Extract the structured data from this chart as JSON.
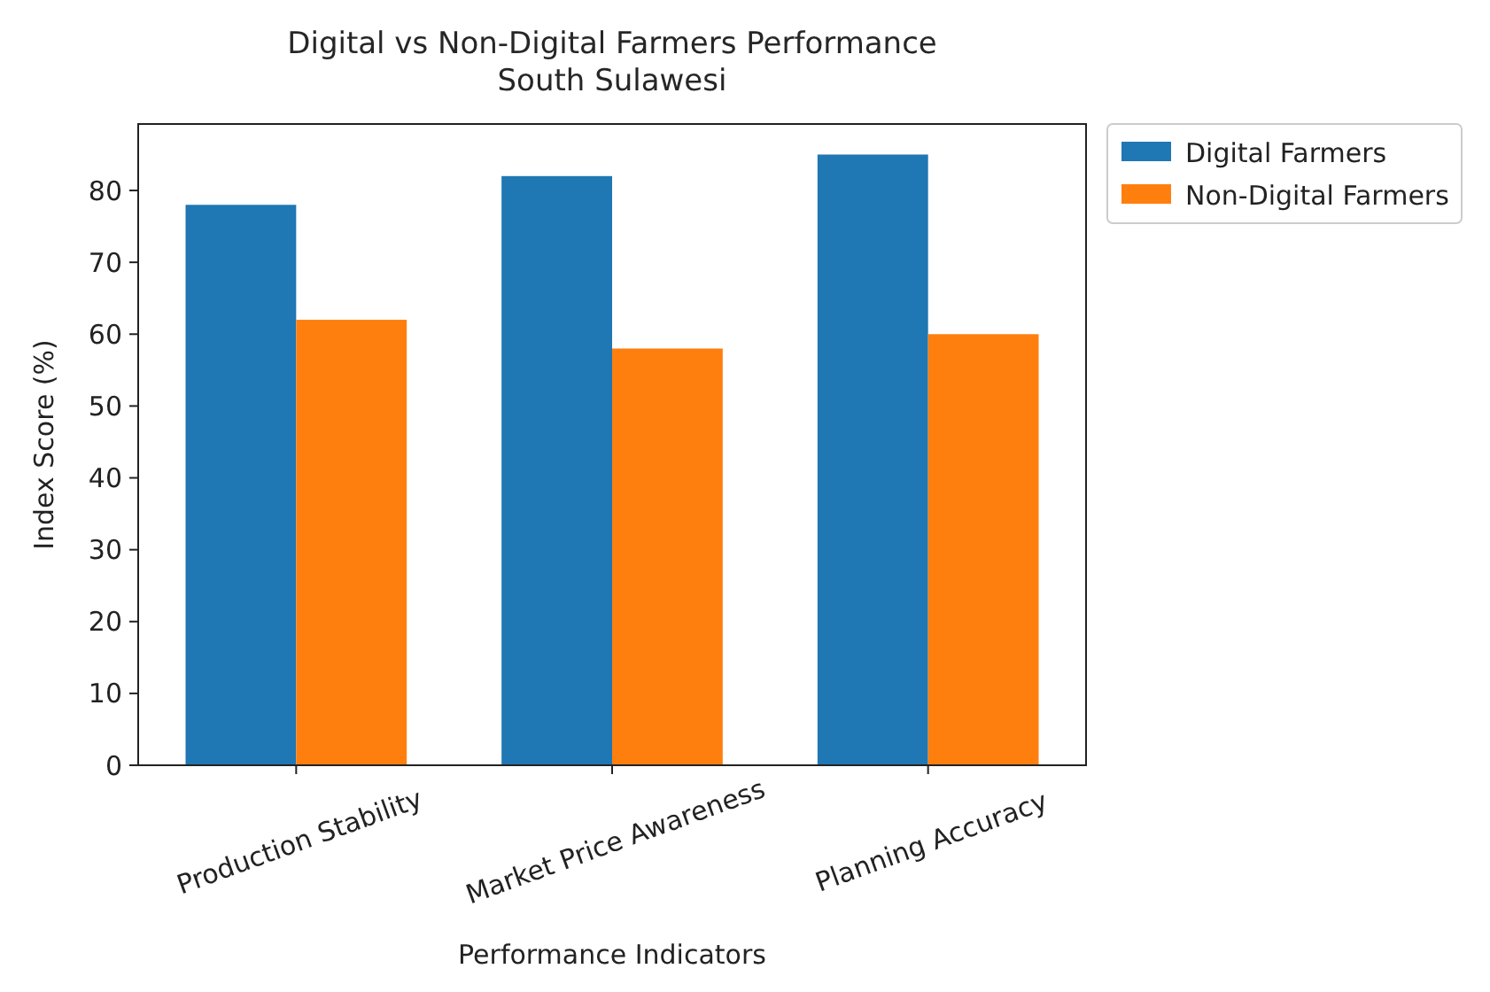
{
  "chart_data": {
    "type": "bar",
    "title": "Digital vs Non-Digital Farmers Performance\nSouth Sulawesi",
    "xlabel": "Performance Indicators",
    "ylabel": "Index Score (%)",
    "categories": [
      "Production Stability",
      "Market Price Awareness",
      "Planning Accuracy"
    ],
    "series": [
      {
        "name": "Digital Farmers",
        "color": "#1f77b4",
        "values": [
          78,
          82,
          85
        ]
      },
      {
        "name": "Non-Digital Farmers",
        "color": "#ff7f0e",
        "values": [
          62,
          58,
          60
        ]
      }
    ],
    "ylim": [
      0,
      89.25
    ],
    "yticks": [
      0,
      10,
      20,
      30,
      40,
      50,
      60,
      70,
      80
    ],
    "legend": "top right"
  }
}
